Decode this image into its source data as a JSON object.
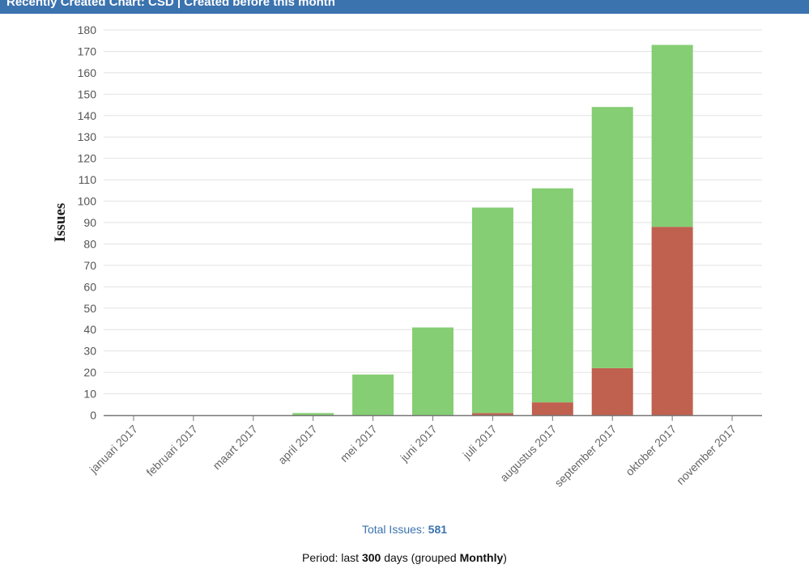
{
  "header": {
    "title": "Recently Created Chart: CSD | Created before this month"
  },
  "footer": {
    "total_label": "Total Issues: ",
    "total_value": "581",
    "period_prefix": "Period: last ",
    "period_days": "300",
    "period_mid": " days (grouped ",
    "period_group": "Monthly",
    "period_suffix": ")"
  },
  "chart_data": {
    "type": "bar",
    "stacked": true,
    "categories": [
      "januari 2017",
      "februari 2017",
      "maart 2017",
      "april 2017",
      "mei 2017",
      "juni 2017",
      "juli 2017",
      "augustus 2017",
      "september 2017",
      "oktober 2017",
      "november 2017"
    ],
    "series": [
      {
        "color": "#c0604f",
        "values": [
          0,
          0,
          0,
          0,
          0,
          0,
          1,
          6,
          22,
          88,
          0
        ]
      },
      {
        "color": "#85ce73",
        "values": [
          0,
          0,
          0,
          1,
          19,
          41,
          96,
          100,
          122,
          85,
          0
        ]
      }
    ],
    "ylabel": "Issues",
    "xlabel": "",
    "ylim": [
      0,
      180
    ],
    "ytick_step": 10,
    "grid": true,
    "legend": "none"
  }
}
